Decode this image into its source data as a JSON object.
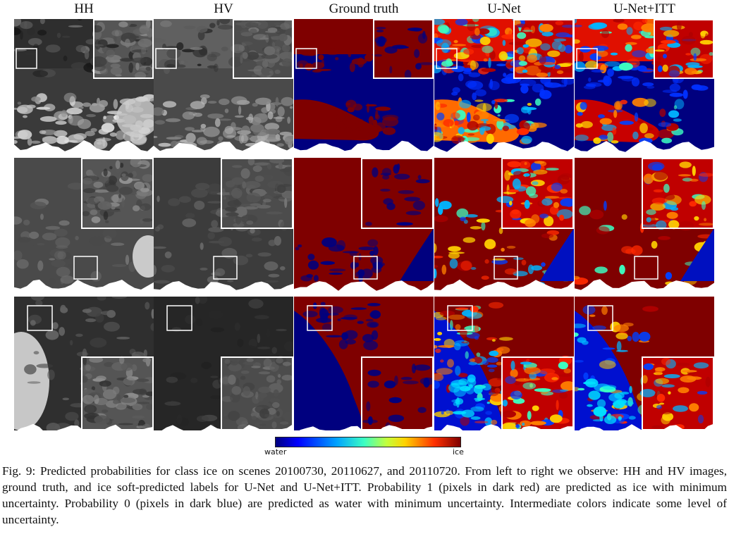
{
  "columns": [
    "HH",
    "HV",
    "Ground truth",
    "U-Net",
    "U-Net+ITT"
  ],
  "scenes": [
    "20100730",
    "20110627",
    "20110720"
  ],
  "colorbar": {
    "min_label": "water",
    "max_label": "ice",
    "colors": [
      "#00007f",
      "#0000ff",
      "#00a2ff",
      "#3cffc2",
      "#c2ff3c",
      "#ffd200",
      "#ff3000",
      "#7f0000"
    ]
  },
  "caption": "Fig. 9: Predicted probabilities for class ice on scenes 20100730, 20110627, and 20110720. From left to right we observe: HH and HV images, ground truth, and ice soft-predicted labels for U-Net and U-Net+ITT. Probability 1 (pixels in dark red) are predicted as ice with minimum uncertainty. Probability 0 (pixels in dark blue) are predicted as water with minimum uncertainty. Intermediate colors indicate some level of uncertainty."
}
